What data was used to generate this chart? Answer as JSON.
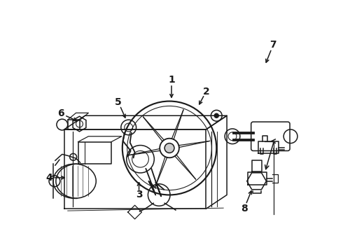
{
  "bg_color": "#ffffff",
  "line_color": "#1a1a1a",
  "lw": 1.1,
  "label_fontsize": 10
}
